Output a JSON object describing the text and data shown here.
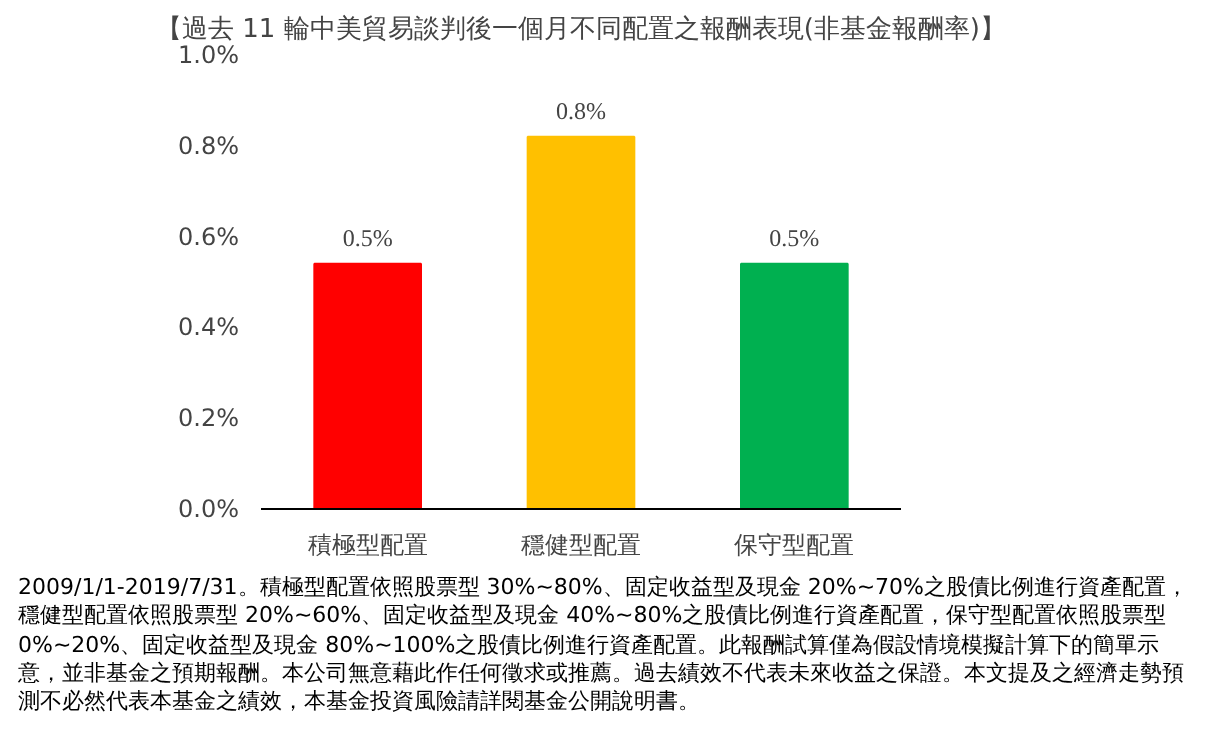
{
  "chart_data": {
    "type": "bar",
    "title": "【過去 11 輪中美貿易談判後一個月不同配置之報酬表現(非基金報酬率)】",
    "categories": [
      "積極型配置",
      "穩健型配置",
      "保守型配置"
    ],
    "values": [
      0.54,
      0.82,
      0.54
    ],
    "colors": [
      "#ff0000",
      "#ffc000",
      "#00b050"
    ],
    "value_labels": [
      "0.5%",
      "0.8%",
      "0.5%"
    ],
    "ylim": [
      0,
      1.0
    ],
    "yticks": [
      {
        "value": 0,
        "label": "0.0%"
      },
      {
        "value": 0.2,
        "label": "0.2%"
      },
      {
        "value": 0.4,
        "label": "0.4%"
      },
      {
        "value": 0.6,
        "label": "0.6%"
      },
      {
        "value": 0.8,
        "label": "0.8%"
      },
      {
        "value": 1.0,
        "label": "1.0%"
      }
    ],
    "grid": false,
    "annotations": [
      "2009/1/1-2019/7/31。積極型配置依照股票型 30%~80%、固定收益型及現金 20%~70%之股債比例進行資產配置，穩健型配置依照股票型 20%~60%、固定收益型及現金 40%~80%之股債比例進行資產配置，保守型配置依照股票型 0%~20%、固定收益型及現金 80%~100%之股債比例進行資產配置。此報酬試算僅為假設情境模擬計算下的簡單示意，並非基金之預期報酬。本公司無意藉此作任何徵求或推薦。過去績效不代表未來收益之保證。本文提及之經濟走勢預測不必然代表本基金之績效，本基金投資風險請詳閱基金公開說明書。"
    ]
  }
}
